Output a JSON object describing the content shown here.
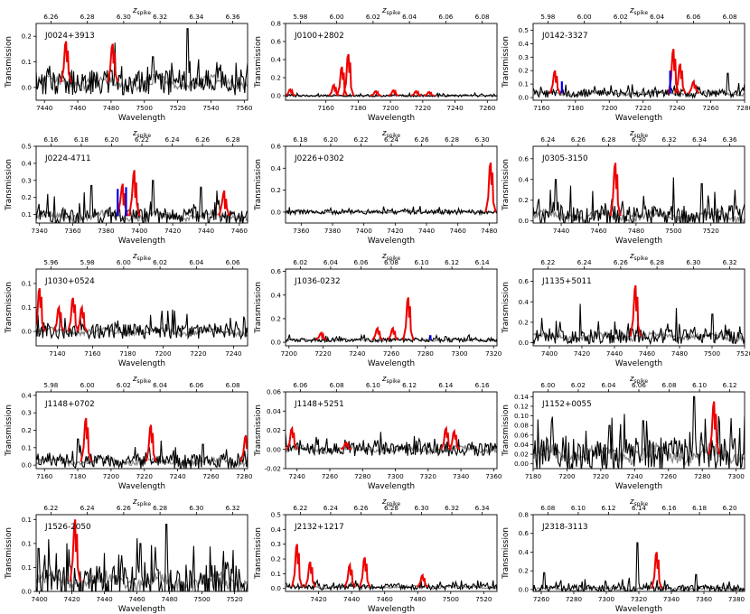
{
  "figure": {
    "shared_ylabel": "Transmission",
    "shared_xlabel": "Wavelength",
    "top_axis_label_main": "z",
    "top_axis_label_sub": "spike"
  },
  "colors": {
    "data": "#000000",
    "model": "#888888",
    "spike": "#ee0000",
    "marker": "#0000ee"
  },
  "chart_data": [
    {
      "type": "line",
      "title": "J0024+3913",
      "xlim": [
        7435,
        7562
      ],
      "ylim": [
        -0.05,
        0.25
      ],
      "yticks": [
        0.0,
        0.1,
        0.2
      ],
      "xticks": [
        7440,
        7460,
        7480,
        7500,
        7520,
        7540,
        7560
      ],
      "zticks": [
        "6.26",
        "6.28",
        "6.30",
        "6.32",
        "6.34",
        "6.36"
      ],
      "noise": 0.05,
      "bg": 0.02,
      "spikes": [
        {
          "x": 7453,
          "h": 0.18
        },
        {
          "x": 7481,
          "h": 0.17
        }
      ],
      "markers": [],
      "tall": [
        {
          "x": 7526,
          "h": 0.23
        },
        {
          "x": 7505,
          "h": 0.12
        }
      ],
      "seed": 11
    },
    {
      "type": "line",
      "title": "J0100+2802",
      "xlim": [
        7135,
        7266
      ],
      "ylim": [
        -0.05,
        0.8
      ],
      "yticks": [
        0.0,
        0.2,
        0.4,
        0.6,
        0.8
      ],
      "xticks": [
        7160,
        7180,
        7200,
        7220,
        7240,
        7260
      ],
      "zticks": [
        "5.98",
        "6.00",
        "6.02",
        "6.04",
        "6.06",
        "6.08"
      ],
      "noise": 0.012,
      "bg": 0.0,
      "spikes": [
        {
          "x": 7138,
          "h": 0.07
        },
        {
          "x": 7165,
          "h": 0.12
        },
        {
          "x": 7170,
          "h": 0.32
        },
        {
          "x": 7174,
          "h": 0.46
        },
        {
          "x": 7191,
          "h": 0.05
        },
        {
          "x": 7202,
          "h": 0.06
        },
        {
          "x": 7216,
          "h": 0.05
        },
        {
          "x": 7224,
          "h": 0.04
        }
      ],
      "markers": [],
      "tall": [],
      "seed": 12
    },
    {
      "type": "line",
      "title": "J0142-3327",
      "xlim": [
        7155,
        7280
      ],
      "ylim": [
        -0.02,
        0.55
      ],
      "yticks": [
        0.0,
        0.1,
        0.2,
        0.3,
        0.4,
        0.5
      ],
      "xticks": [
        7160,
        7180,
        7200,
        7220,
        7240,
        7260,
        7280
      ],
      "zticks": [
        "5.98",
        "6.00",
        "6.02",
        "6.04",
        "6.06",
        "6.08"
      ],
      "noise": 0.03,
      "bg": 0.03,
      "spikes": [
        {
          "x": 7168,
          "h": 0.2
        },
        {
          "x": 7238,
          "h": 0.36
        },
        {
          "x": 7242,
          "h": 0.25
        },
        {
          "x": 7250,
          "h": 0.12
        }
      ],
      "markers": [
        {
          "x": 7172,
          "h": 0.12
        },
        {
          "x": 7236,
          "h": 0.2
        }
      ],
      "tall": [
        {
          "x": 7270,
          "h": 0.18
        }
      ],
      "seed": 13
    },
    {
      "type": "line",
      "title": "J0224-4711",
      "xlim": [
        7338,
        7465
      ],
      "ylim": [
        0.05,
        0.5
      ],
      "yticks": [
        0.1,
        0.2,
        0.3,
        0.4,
        0.5
      ],
      "xticks": [
        7340,
        7360,
        7380,
        7400,
        7420,
        7440,
        7460
      ],
      "zticks": [
        "6.16",
        "6.18",
        "6.20",
        "6.22",
        "6.24",
        "6.26",
        "6.28"
      ],
      "noise": 0.05,
      "bg": 0.09,
      "spikes": [
        {
          "x": 7390,
          "h": 0.28
        },
        {
          "x": 7397,
          "h": 0.36
        },
        {
          "x": 7451,
          "h": 0.24
        }
      ],
      "markers": [
        {
          "x": 7387,
          "h": 0.25
        },
        {
          "x": 7392,
          "h": 0.26
        }
      ],
      "tall": [
        {
          "x": 7371,
          "h": 0.27
        },
        {
          "x": 7408,
          "h": 0.3
        },
        {
          "x": 7437,
          "h": 0.26
        }
      ],
      "seed": 21
    },
    {
      "type": "line",
      "title": "J0226+0302",
      "xlim": [
        7350,
        7485
      ],
      "ylim": [
        -0.1,
        0.6
      ],
      "yticks": [
        0.0,
        0.2,
        0.4,
        0.6
      ],
      "xticks": [
        7360,
        7380,
        7400,
        7420,
        7440,
        7460,
        7480
      ],
      "zticks": [
        "6.18",
        "6.20",
        "6.22",
        "6.24",
        "6.26",
        "6.28",
        "6.30"
      ],
      "noise": 0.02,
      "bg": 0.0,
      "spikes": [
        {
          "x": 7481,
          "h": 0.45
        }
      ],
      "markers": [],
      "tall": [],
      "seed": 22
    },
    {
      "type": "line",
      "title": "J0305-3150",
      "xlim": [
        7425,
        7538
      ],
      "ylim": [
        -0.02,
        0.72
      ],
      "yticks": [
        0.0,
        0.2,
        0.4,
        0.6
      ],
      "xticks": [
        7440,
        7460,
        7480,
        7500,
        7520
      ],
      "zticks": [
        "6.24",
        "6.26",
        "6.28",
        "6.30",
        "6.32",
        "6.34",
        "6.36"
      ],
      "noise": 0.1,
      "bg": 0.05,
      "spikes": [
        {
          "x": 7469,
          "h": 0.56
        }
      ],
      "markers": [],
      "tall": [
        {
          "x": 7437,
          "h": 0.4
        },
        {
          "x": 7500,
          "h": 0.42
        },
        {
          "x": 7515,
          "h": 0.36
        },
        {
          "x": 7445,
          "h": 0.34
        }
      ],
      "seed": 23
    },
    {
      "type": "line",
      "title": "J1030+0524",
      "xlim": [
        7128,
        7248
      ],
      "ylim": [
        -0.03,
        0.13
      ],
      "yticks": [
        0.0,
        0.05,
        0.1
      ],
      "xticks": [
        7140,
        7160,
        7180,
        7200,
        7220,
        7240
      ],
      "zticks": [
        "5.96",
        "5.98",
        "6.00",
        "6.02",
        "6.04",
        "6.06"
      ],
      "noise": 0.015,
      "bg": 0.0,
      "spikes": [
        {
          "x": 7130,
          "h": 0.09
        },
        {
          "x": 7141,
          "h": 0.05
        },
        {
          "x": 7149,
          "h": 0.07
        },
        {
          "x": 7154,
          "h": 0.05
        }
      ],
      "markers": [],
      "tall": [],
      "seed": 31
    },
    {
      "type": "line",
      "title": "J1036-0232",
      "xlim": [
        7198,
        7322
      ],
      "ylim": [
        -0.03,
        0.62
      ],
      "yticks": [
        0.0,
        0.2,
        0.4,
        0.6
      ],
      "xticks": [
        7200,
        7220,
        7240,
        7260,
        7280,
        7300,
        7320
      ],
      "zticks": [
        "6.02",
        "6.04",
        "6.06",
        "6.08",
        "6.10",
        "6.12",
        "6.14"
      ],
      "noise": 0.018,
      "bg": 0.02,
      "spikes": [
        {
          "x": 7219,
          "h": 0.08
        },
        {
          "x": 7252,
          "h": 0.12
        },
        {
          "x": 7261,
          "h": 0.12
        },
        {
          "x": 7270,
          "h": 0.38
        }
      ],
      "markers": [
        {
          "x": 7283,
          "h": 0.06
        }
      ],
      "tall": [
        {
          "x": 7292,
          "h": 0.05
        }
      ],
      "seed": 32
    },
    {
      "type": "line",
      "title": "J1135+5011",
      "xlim": [
        7390,
        7520
      ],
      "ylim": [
        -0.03,
        0.72
      ],
      "yticks": [
        0.0,
        0.2,
        0.4,
        0.6
      ],
      "xticks": [
        7400,
        7420,
        7440,
        7460,
        7480,
        7500,
        7520
      ],
      "zticks": [
        "6.22",
        "6.24",
        "6.26",
        "6.28",
        "6.30",
        "6.32"
      ],
      "noise": 0.07,
      "bg": 0.06,
      "spikes": [
        {
          "x": 7453,
          "h": 0.56
        }
      ],
      "markers": [],
      "tall": [
        {
          "x": 7419,
          "h": 0.38
        },
        {
          "x": 7478,
          "h": 0.34
        },
        {
          "x": 7500,
          "h": 0.28
        }
      ],
      "seed": 33
    },
    {
      "type": "line",
      "title": "J1148+0702",
      "xlim": [
        7155,
        7282
      ],
      "ylim": [
        -0.02,
        0.42
      ],
      "yticks": [
        0.0,
        0.1,
        0.2,
        0.3,
        0.4
      ],
      "xticks": [
        7160,
        7180,
        7200,
        7220,
        7240,
        7260,
        7280
      ],
      "zticks": [
        "5.98",
        "6.00",
        "6.02",
        "6.04",
        "6.06",
        "6.08"
      ],
      "noise": 0.04,
      "bg": 0.02,
      "spikes": [
        {
          "x": 7185,
          "h": 0.27
        },
        {
          "x": 7224,
          "h": 0.23
        },
        {
          "x": 7281,
          "h": 0.17
        }
      ],
      "markers": [],
      "tall": [
        {
          "x": 7180,
          "h": 0.15
        },
        {
          "x": 7255,
          "h": 0.12
        }
      ],
      "seed": 41
    },
    {
      "type": "line",
      "title": "J1148+5251",
      "xlim": [
        7233,
        7362
      ],
      "ylim": [
        -0.02,
        0.06
      ],
      "yticks": [
        -0.02,
        0.0,
        0.02,
        0.04,
        0.06
      ],
      "xticks": [
        7240,
        7260,
        7280,
        7300,
        7320,
        7340,
        7360
      ],
      "zticks": [
        "6.06",
        "6.08",
        "6.10",
        "6.12",
        "6.14",
        "6.16"
      ],
      "noise": 0.007,
      "bg": 0.0,
      "spikes": [
        {
          "x": 7237,
          "h": 0.022
        },
        {
          "x": 7270,
          "h": 0.007
        },
        {
          "x": 7331,
          "h": 0.022
        },
        {
          "x": 7336,
          "h": 0.019
        }
      ],
      "markers": [],
      "tall": [],
      "seed": 42
    },
    {
      "type": "line",
      "title": "J1152+0055",
      "xlim": [
        7180,
        7305
      ],
      "ylim": [
        -0.01,
        0.15
      ],
      "yticks": [
        0.0,
        0.02,
        0.04,
        0.06,
        0.08,
        0.1,
        0.12,
        0.14
      ],
      "xticks": [
        7180,
        7200,
        7220,
        7240,
        7260,
        7280,
        7300
      ],
      "zticks": [
        "6.00",
        "6.02",
        "6.04",
        "6.06",
        "6.08",
        "6.10",
        "6.12"
      ],
      "noise": 0.035,
      "bg": 0.02,
      "spikes": [
        {
          "x": 7287,
          "h": 0.13
        }
      ],
      "markers": [],
      "tall": [
        {
          "x": 7275,
          "h": 0.14
        },
        {
          "x": 7245,
          "h": 0.09
        },
        {
          "x": 7225,
          "h": 0.08
        }
      ],
      "seed": 43
    },
    {
      "type": "line",
      "title": "J1526-2050",
      "xlim": [
        7398,
        7528
      ],
      "ylim": [
        -0.0,
        0.16
      ],
      "yticks": [
        0.0,
        0.05,
        0.1,
        0.15
      ],
      "xticks": [
        7400,
        7420,
        7440,
        7460,
        7480,
        7500,
        7520
      ],
      "zticks": [
        "6.22",
        "6.24",
        "6.26",
        "6.28",
        "6.30",
        "6.32"
      ],
      "noise": 0.035,
      "bg": 0.02,
      "spikes": [
        {
          "x": 7422,
          "h": 0.15
        }
      ],
      "markers": [],
      "tall": [
        {
          "x": 7478,
          "h": 0.14
        },
        {
          "x": 7462,
          "h": 0.1
        },
        {
          "x": 7440,
          "h": 0.08
        }
      ],
      "seed": 51
    },
    {
      "type": "line",
      "title": "J2132+1217",
      "xlim": [
        7400,
        7528
      ],
      "ylim": [
        -0.02,
        0.5
      ],
      "yticks": [
        0.0,
        0.1,
        0.2,
        0.3,
        0.4,
        0.5
      ],
      "xticks": [
        7420,
        7440,
        7460,
        7480,
        7500,
        7520
      ],
      "zticks": [
        "6.22",
        "6.24",
        "6.26",
        "6.28",
        "6.30",
        "6.32",
        "6.34"
      ],
      "noise": 0.02,
      "bg": 0.01,
      "spikes": [
        {
          "x": 7407,
          "h": 0.3
        },
        {
          "x": 7415,
          "h": 0.18
        },
        {
          "x": 7439,
          "h": 0.16
        },
        {
          "x": 7448,
          "h": 0.21
        },
        {
          "x": 7483,
          "h": 0.09
        }
      ],
      "markers": [],
      "tall": [],
      "seed": 52
    },
    {
      "type": "line",
      "title": "J2318-3113",
      "xlim": [
        7255,
        7385
      ],
      "ylim": [
        -0.02,
        0.8
      ],
      "yticks": [
        0.0,
        0.2,
        0.4,
        0.6,
        0.8
      ],
      "xticks": [
        7260,
        7280,
        7300,
        7320,
        7340,
        7360,
        7380
      ],
      "zticks": [
        "6.08",
        "6.10",
        "6.12",
        "6.14",
        "6.16",
        "6.18",
        "6.20"
      ],
      "noise": 0.04,
      "bg": 0.01,
      "spikes": [
        {
          "x": 7331,
          "h": 0.4
        }
      ],
      "markers": [],
      "tall": [
        {
          "x": 7319,
          "h": 0.5
        },
        {
          "x": 7262,
          "h": 0.18
        },
        {
          "x": 7355,
          "h": 0.16
        }
      ],
      "seed": 53
    }
  ]
}
